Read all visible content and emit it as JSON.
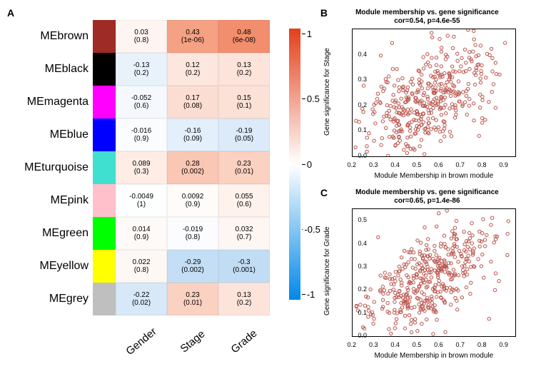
{
  "panelA": {
    "label": "A",
    "rows": [
      {
        "name": "MEbrown",
        "color": "#9e2b25"
      },
      {
        "name": "MEblack",
        "color": "#000000"
      },
      {
        "name": "MEmagenta",
        "color": "#ff00ff"
      },
      {
        "name": "MEblue",
        "color": "#0000ff"
      },
      {
        "name": "MEturquoise",
        "color": "#40e0d0"
      },
      {
        "name": "MEpink",
        "color": "#ffc0cb"
      },
      {
        "name": "MEgreen",
        "color": "#00ff00"
      },
      {
        "name": "MEyellow",
        "color": "#ffff00"
      },
      {
        "name": "MEgrey",
        "color": "#bfbfbf"
      }
    ],
    "cols": [
      "Gender",
      "Stage",
      "Grade"
    ],
    "cells": [
      [
        {
          "v": "0.03",
          "p": "(0.8)",
          "bg": "#fef5f2"
        },
        {
          "v": "0.43",
          "p": "(1e-06)",
          "bg": "#f5a184"
        },
        {
          "v": "0.48",
          "p": "(6e-08)",
          "bg": "#f28e6e"
        }
      ],
      [
        {
          "v": "-0.13",
          "p": "(0.2)",
          "bg": "#e8f2fb"
        },
        {
          "v": "0.12",
          "p": "(0.2)",
          "bg": "#fde6de"
        },
        {
          "v": "0.13",
          "p": "(0.2)",
          "bg": "#fde4db"
        }
      ],
      [
        {
          "v": "-0.052",
          "p": "(0.6)",
          "bg": "#f5f9fe"
        },
        {
          "v": "0.17",
          "p": "(0.08)",
          "bg": "#fcddd2"
        },
        {
          "v": "0.15",
          "p": "(0.1)",
          "bg": "#fce1d7"
        }
      ],
      [
        {
          "v": "-0.016",
          "p": "(0.9)",
          "bg": "#fbfcfe"
        },
        {
          "v": "-0.16",
          "p": "(0.09)",
          "bg": "#e3effa"
        },
        {
          "v": "-0.19",
          "p": "(0.05)",
          "bg": "#ddeaf9"
        }
      ],
      [
        {
          "v": "0.089",
          "p": "(0.3)",
          "bg": "#feece5"
        },
        {
          "v": "0.28",
          "p": "(0.002)",
          "bg": "#fac7b4"
        },
        {
          "v": "0.23",
          "p": "(0.01)",
          "bg": "#fbd1c1"
        }
      ],
      [
        {
          "v": "-0.0049",
          "p": "(1)",
          "bg": "#fdfefe"
        },
        {
          "v": "0.0092",
          "p": "(0.9)",
          "bg": "#fefbf9"
        },
        {
          "v": "0.055",
          "p": "(0.6)",
          "bg": "#fef2ed"
        }
      ],
      [
        {
          "v": "0.014",
          "p": "(0.9)",
          "bg": "#fefaf8"
        },
        {
          "v": "-0.019",
          "p": "(0.8)",
          "bg": "#fafcfe"
        },
        {
          "v": "0.032",
          "p": "(0.7)",
          "bg": "#fef6f3"
        }
      ],
      [
        {
          "v": "0.022",
          "p": "(0.8)",
          "bg": "#fef8f5"
        },
        {
          "v": "-0.29",
          "p": "(0.002)",
          "bg": "#c4dff5"
        },
        {
          "v": "-0.3",
          "p": "(0.001)",
          "bg": "#c1ddf4"
        }
      ],
      [
        {
          "v": "-0.22",
          "p": "(0.02)",
          "bg": "#d7e8f8"
        },
        {
          "v": "0.23",
          "p": "(0.01)",
          "bg": "#fbd1c1"
        },
        {
          "v": "0.13",
          "p": "(0.2)",
          "bg": "#fde4db"
        }
      ]
    ],
    "colorbar": {
      "gradient_top": "#e43f1a",
      "gradient_mid": "#ffffff",
      "gradient_bot": "#0088e8",
      "ticks": [
        "1",
        "0.5",
        "0",
        "-0.5",
        "-1"
      ]
    }
  },
  "panelB": {
    "label": "B",
    "title1": "Module membership vs. gene significance",
    "title2": "cor=0.54, p=4.6e-55",
    "xlab": "Module Membership in brown module",
    "ylab": "Gene significance for  Stage",
    "xlim": [
      0.2,
      0.95
    ],
    "ylim": [
      0,
      0.5
    ],
    "xticks": [
      "0.2",
      "0.3",
      "0.4",
      "0.5",
      "0.6",
      "0.7",
      "0.8",
      "0.9"
    ],
    "yticks": [
      "0.0",
      "0.1",
      "0.2",
      "0.3",
      "0.4"
    ],
    "point_color": "#b9534a",
    "n_points": 420,
    "cor": 0.54
  },
  "panelC": {
    "label": "C",
    "title1": "Module membership vs. gene significance",
    "title2": "cor=0.65, p=1.4e-86",
    "xlab": "Module Membership in brown module",
    "ylab": "Gene significance for  Grade",
    "xlim": [
      0.2,
      0.95
    ],
    "ylim": [
      0,
      0.55
    ],
    "xticks": [
      "0.2",
      "0.3",
      "0.4",
      "0.5",
      "0.6",
      "0.7",
      "0.8",
      "0.9"
    ],
    "yticks": [
      "0.0",
      "0.1",
      "0.2",
      "0.3",
      "0.4",
      "0.5"
    ],
    "point_color": "#b9534a",
    "n_points": 420,
    "cor": 0.65
  }
}
